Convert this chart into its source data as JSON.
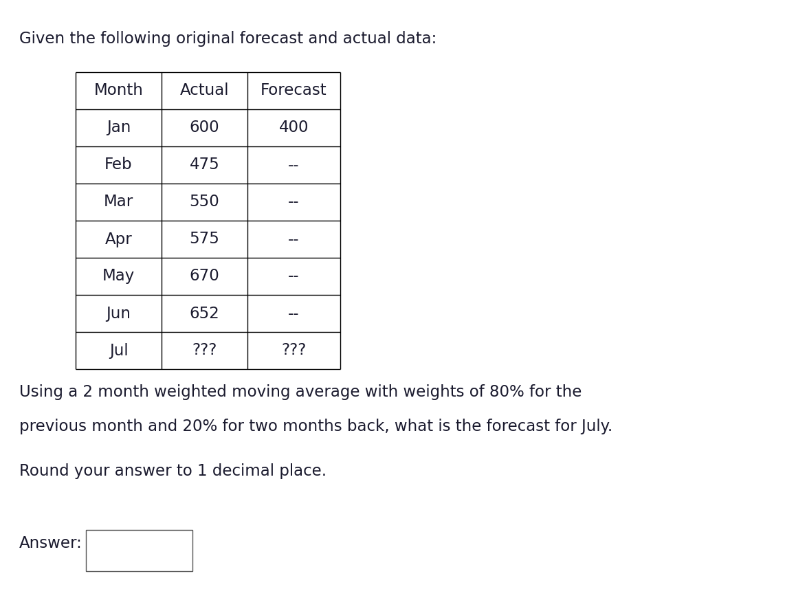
{
  "title_text": "Given the following original forecast and actual data:",
  "table_headers": [
    "Month",
    "Actual",
    "Forecast"
  ],
  "table_rows": [
    [
      "Jan",
      "600",
      "400"
    ],
    [
      "Feb",
      "475",
      "--"
    ],
    [
      "Mar",
      "550",
      "--"
    ],
    [
      "Apr",
      "575",
      "--"
    ],
    [
      "May",
      "670",
      "--"
    ],
    [
      "Jun",
      "652",
      "--"
    ],
    [
      "Jul",
      "???",
      "???"
    ]
  ],
  "question_line1": "Using a 2 month weighted moving average with weights of 80% for the",
  "question_line2": "previous month and 20% for two months back, what is the forecast for July.",
  "round_text": "Round your answer to 1 decimal place.",
  "answer_label": "Answer:",
  "bg_color": "#ffffff",
  "text_color": "#1a1a2e",
  "font_size": 16.5,
  "fig_width": 11.74,
  "fig_height": 8.86,
  "dpi": 100
}
